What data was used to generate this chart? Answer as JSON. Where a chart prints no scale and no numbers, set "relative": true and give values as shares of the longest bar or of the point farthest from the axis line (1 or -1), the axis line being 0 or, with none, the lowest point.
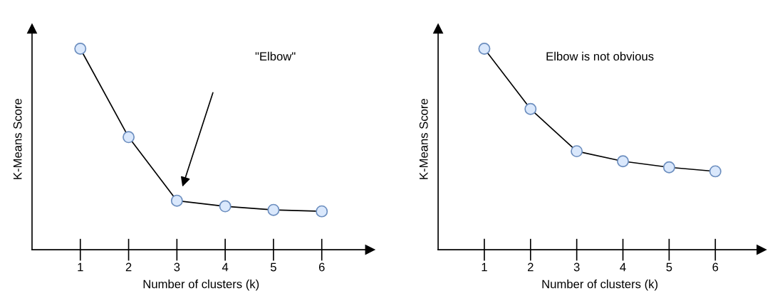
{
  "chart_data": [
    {
      "type": "line",
      "relative": true,
      "xlabel": "Number of clusters (k)",
      "ylabel": "K-Means Score",
      "categories": [
        "1",
        "2",
        "3",
        "4",
        "5",
        "6"
      ],
      "series": [
        {
          "color": "#000000",
          "values": [
            1,
            0.56,
            0.244,
            0.216,
            0.198,
            0.191
          ]
        }
      ],
      "marker": "circle",
      "line_style": "solid",
      "grid": false,
      "tick_labels": "x",
      "annotations": [
        "\"Elbow\""
      ]
    },
    {
      "type": "line",
      "relative": true,
      "xlabel": "Number of clusters (k)",
      "ylabel": "K-Means Score",
      "categories": [
        "1",
        "2",
        "3",
        "4",
        "5",
        "6"
      ],
      "series": [
        {
          "color": "#000000",
          "values": [
            1,
            0.7,
            0.49,
            0.44,
            0.41,
            0.39
          ]
        }
      ],
      "marker": "circle",
      "line_style": "solid",
      "grid": false,
      "tick_labels": "x",
      "annotations": [
        "Elbow is not obvious"
      ]
    }
  ]
}
